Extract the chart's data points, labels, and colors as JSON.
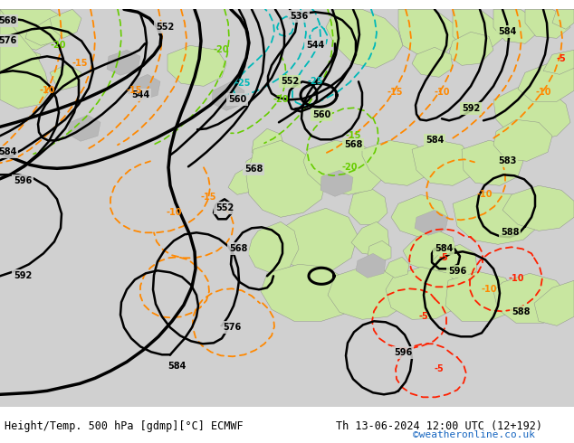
{
  "title_left": "Height/Temp. 500 hPa [gdmp][°C] ECMWF",
  "title_right": "Th 13-06-2024 12:00 UTC (12+192)",
  "watermark": "©weatheronline.co.uk",
  "bg_sea": "#d2d2d2",
  "land_green": "#c8e6a0",
  "land_gray": "#b0b0b0",
  "z500_color": "#000000",
  "temp_orange": "#ff8800",
  "temp_cyan": "#00b8b8",
  "temp_green": "#66cc00",
  "temp_red": "#ff2000",
  "fig_width": 6.34,
  "fig_height": 4.9,
  "dpi": 100,
  "fs_label": 7.0,
  "fs_title": 8.5,
  "fs_water": 8.0
}
